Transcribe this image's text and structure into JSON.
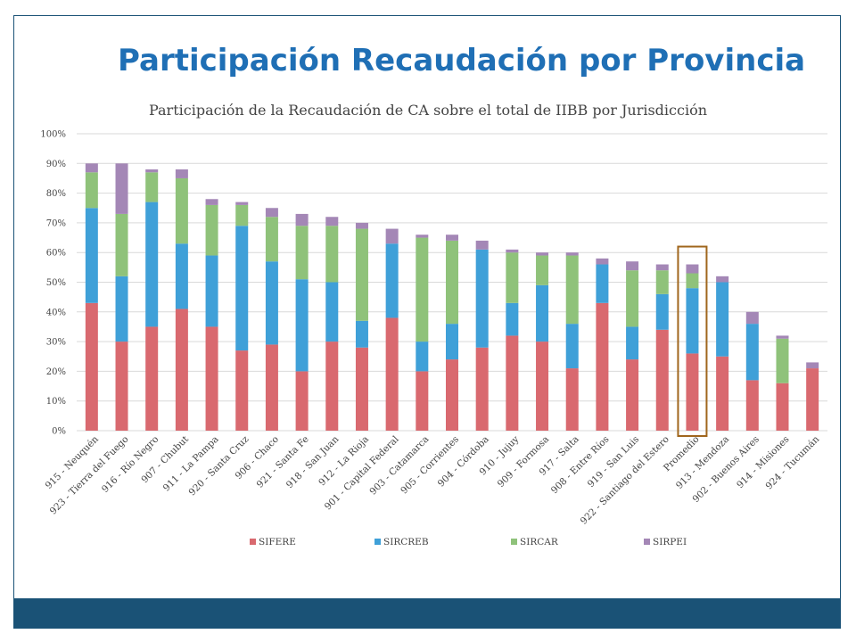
{
  "slide": {
    "title": "Participación Recaudación por Provincia"
  },
  "colors": {
    "title": "#1f6fb5",
    "footer": "#1a5276",
    "highlight_box": "#a0661d"
  },
  "chart_data": {
    "type": "bar",
    "stacked": true,
    "title": "Participación de la Recaudación de CA sobre el total de IIBB por Jurisdicción",
    "xlabel": "",
    "ylabel": "",
    "ylim": [
      0,
      100
    ],
    "yticks": [
      "0%",
      "10%",
      "20%",
      "30%",
      "40%",
      "50%",
      "60%",
      "70%",
      "80%",
      "90%",
      "100%"
    ],
    "grid": true,
    "legend_position": "bottom",
    "highlighted_category": "Promedio",
    "categories": [
      "915 - Neuquén",
      "923 - Tierra del Fuego",
      "916 - Río Negro",
      "907 - Chubut",
      "911 - La Pampa",
      "920 - Santa Cruz",
      "906 - Chaco",
      "921 - Santa Fe",
      "918 - San Juan",
      "912 - La Rioja",
      "901 - Capital Federal",
      "903 - Catamarca",
      "905 - Corrientes",
      "904 - Córdoba",
      "910 - Jujuy",
      "909 - Formosa",
      "917 - Salta",
      "908 - Entre Ríos",
      "919 - San Luis",
      "922 - Santiago del Estero",
      "Promedio",
      "913 - Mendoza",
      "902 - Buenos Aires",
      "914 - Misiones",
      "924 - Tucumán"
    ],
    "series": [
      {
        "name": "SIFERE",
        "color": "#d9696f",
        "values": [
          43,
          30,
          35,
          41,
          35,
          27,
          29,
          20,
          30,
          28,
          38,
          20,
          24,
          28,
          32,
          30,
          21,
          43,
          24,
          34,
          26,
          25,
          17,
          16,
          21
        ]
      },
      {
        "name": "SIRCREB",
        "color": "#3fa0d8",
        "values": [
          32,
          22,
          42,
          22,
          24,
          42,
          28,
          31,
          20,
          9,
          25,
          10,
          12,
          33,
          11,
          19,
          15,
          13,
          11,
          12,
          22,
          25,
          19,
          0,
          0
        ]
      },
      {
        "name": "SIRCAR",
        "color": "#8fc27a",
        "values": [
          12,
          21,
          10,
          22,
          17,
          7,
          15,
          18,
          19,
          31,
          0,
          35,
          28,
          0,
          17,
          10,
          23,
          0,
          19,
          8,
          5,
          0,
          0,
          15,
          0
        ]
      },
      {
        "name": "SIRPEI",
        "color": "#a487b6",
        "values": [
          3,
          17,
          1,
          3,
          2,
          1,
          3,
          4,
          3,
          2,
          5,
          1,
          2,
          3,
          1,
          1,
          1,
          2,
          3,
          2,
          3,
          2,
          4,
          1,
          2
        ]
      }
    ]
  }
}
